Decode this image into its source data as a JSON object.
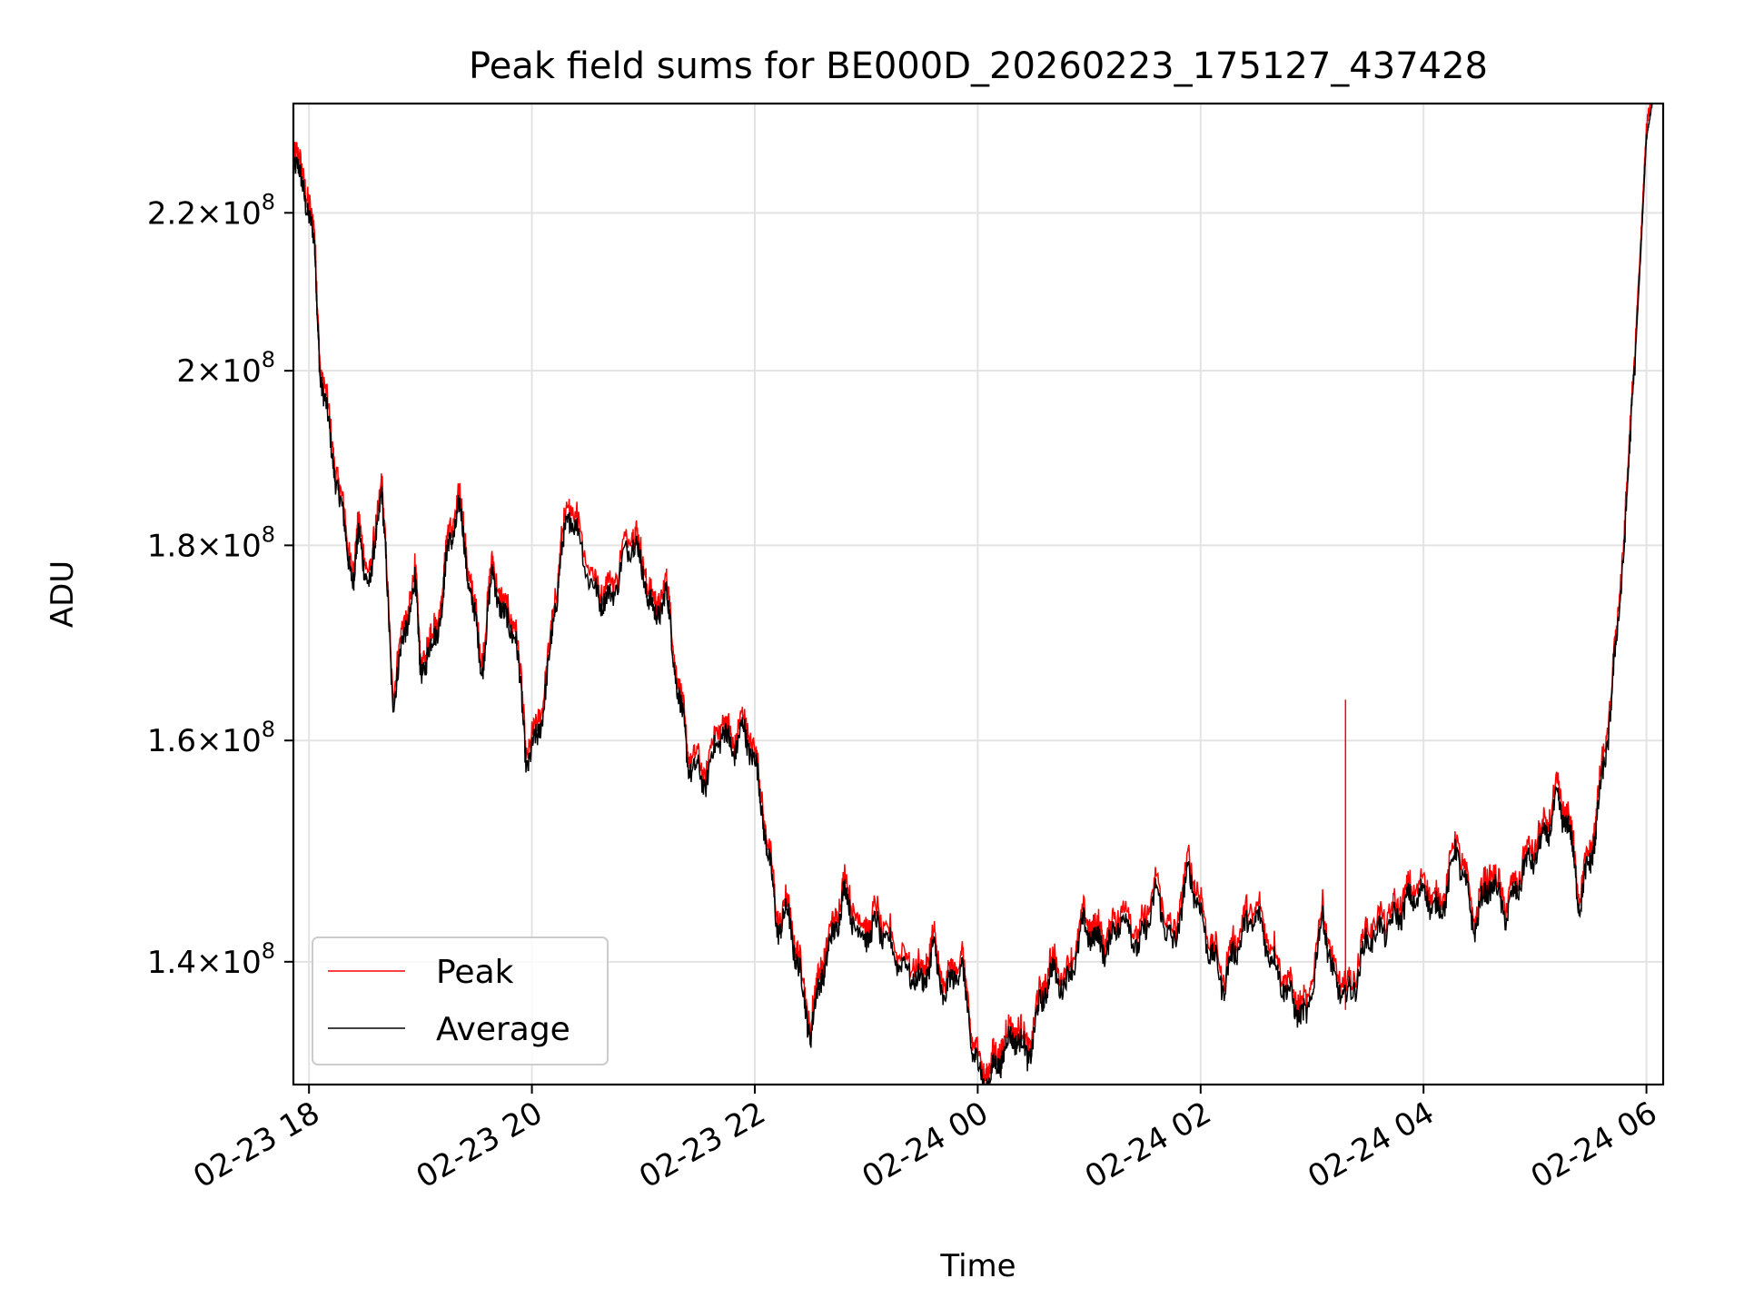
{
  "chart_data": {
    "type": "line",
    "title": "Peak field sums for BE000D_20260223_175127_437428",
    "xlabel": "Time",
    "ylabel": "ADU",
    "y_scale": "log",
    "x_unit": "hours since 02-23 18:00",
    "xlim": [
      -0.14,
      12.15
    ],
    "ylim": [
      130000000.0,
      235000000.0
    ],
    "grid": true,
    "legend_position": "lower-left",
    "x_ticks": [
      {
        "value": 0,
        "label": "02-23 18"
      },
      {
        "value": 2,
        "label": "02-23 20"
      },
      {
        "value": 4,
        "label": "02-23 22"
      },
      {
        "value": 6,
        "label": "02-24 00"
      },
      {
        "value": 8,
        "label": "02-24 02"
      },
      {
        "value": 10,
        "label": "02-24 04"
      },
      {
        "value": 12,
        "label": "02-24 06"
      }
    ],
    "y_ticks": [
      {
        "value": 140000000.0,
        "mantissa": "1.4",
        "base": "×10",
        "exp": "8"
      },
      {
        "value": 160000000.0,
        "mantissa": "1.6",
        "base": "×10",
        "exp": "8"
      },
      {
        "value": 180000000.0,
        "mantissa": "1.8",
        "base": "×10",
        "exp": "8"
      },
      {
        "value": 200000000.0,
        "mantissa": "2",
        "base": "×10",
        "exp": "8"
      },
      {
        "value": 220000000.0,
        "mantissa": "2.2",
        "base": "×10",
        "exp": "8"
      }
    ],
    "series": [
      {
        "name": "Peak",
        "color": "#ff0000",
        "spike": {
          "x": 9.3,
          "y": 164000000.0
        }
      },
      {
        "name": "Average",
        "color": "#000000"
      }
    ],
    "x": [
      -0.14,
      -0.05,
      0.05,
      0.1,
      0.2,
      0.3,
      0.4,
      0.45,
      0.55,
      0.65,
      0.75,
      0.85,
      0.95,
      1.0,
      1.1,
      1.2,
      1.25,
      1.35,
      1.45,
      1.55,
      1.65,
      1.75,
      1.85,
      1.95,
      2.05,
      2.15,
      2.25,
      2.35,
      2.55,
      2.7,
      2.9,
      3.0,
      3.1,
      3.2,
      3.3,
      3.4,
      3.55,
      3.7,
      3.8,
      3.9,
      4.0,
      4.1,
      4.2,
      4.3,
      4.4,
      4.5,
      4.6,
      4.7,
      4.8,
      4.95,
      5.1,
      5.3,
      5.5,
      5.6,
      5.7,
      5.85,
      5.95,
      6.05,
      6.15,
      6.25,
      6.35,
      6.45,
      6.55,
      6.65,
      6.8,
      6.95,
      7.05,
      7.15,
      7.3,
      7.45,
      7.6,
      7.75,
      7.9,
      8.05,
      8.2,
      8.35,
      8.5,
      8.65,
      8.8,
      8.95,
      9.1,
      9.2,
      9.35,
      9.5,
      9.7,
      9.85,
      10.0,
      10.15,
      10.3,
      10.45,
      10.6,
      10.75,
      10.9,
      11.05,
      11.2,
      11.3,
      11.4,
      11.5,
      11.55,
      11.65,
      11.75,
      11.85,
      11.95,
      12.0,
      12.05
    ],
    "values": [
      226000000.0,
      224000000.0,
      215000000.0,
      200000000.0,
      191000000.0,
      183000000.0,
      176000000.0,
      181000000.0,
      175000000.0,
      187000000.0,
      164000000.0,
      170000000.0,
      176000000.0,
      167000000.0,
      169000000.0,
      174000000.0,
      180000000.0,
      184000000.0,
      175000000.0,
      167000000.0,
      177000000.0,
      172000000.0,
      171000000.0,
      158000000.0,
      160000000.0,
      167000000.0,
      178000000.0,
      184000000.0,
      175000000.0,
      174000000.0,
      181000000.0,
      177000000.0,
      172000000.0,
      175000000.0,
      166000000.0,
      158000000.0,
      156000000.0,
      161000000.0,
      159000000.0,
      161000000.0,
      158000000.0,
      151000000.0,
      143000000.0,
      144000000.0,
      139000000.0,
      134000000.0,
      139000000.0,
      142000000.0,
      146000000.0,
      142000000.0,
      143000000.0,
      140000000.0,
      138000000.0,
      141000000.0,
      137000000.0,
      140000000.0,
      133000000.0,
      130000000.0,
      131000000.0,
      133000000.0,
      134000000.0,
      132000000.0,
      136000000.0,
      139000000.0,
      138000000.0,
      143000000.0,
      142000000.0,
      141000000.0,
      144000000.0,
      141000000.0,
      146000000.0,
      141000000.0,
      148000000.0,
      142000000.0,
      138000000.0,
      142000000.0,
      144000000.0,
      140000000.0,
      137000000.0,
      135000000.0,
      144000000.0,
      138000000.0,
      137000000.0,
      142000000.0,
      143000000.0,
      145000000.0,
      146000000.0,
      144000000.0,
      150000000.0,
      143000000.0,
      147000000.0,
      144000000.0,
      148000000.0,
      150000000.0,
      154000000.0,
      152000000.0,
      145000000.0,
      149000000.0,
      152000000.0,
      160000000.0,
      172000000.0,
      190000000.0,
      215000000.0,
      230000000.0,
      235000000.0
    ]
  }
}
